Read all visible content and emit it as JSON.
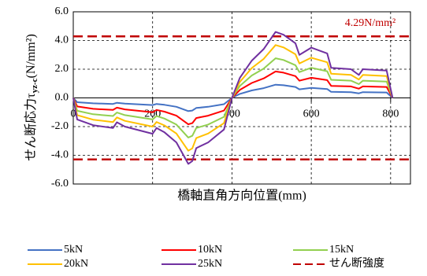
{
  "chart_data": {
    "type": "line",
    "xlabel": "橋軸直角方向位置(mm)",
    "ylabel": "せん断応力τ",
    "ylabel_sub": "yz-c",
    "ylabel_tail": "(N/mm²)",
    "annotation": "4.29N/mm²",
    "x": [
      0,
      10,
      50,
      100,
      110,
      130,
      200,
      210,
      230,
      260,
      290,
      300,
      310,
      340,
      380,
      400,
      420,
      450,
      480,
      510,
      530,
      560,
      570,
      600,
      640,
      650,
      700,
      720,
      730,
      790,
      805
    ],
    "series": [
      {
        "name": "5kN",
        "color": "#4472c4",
        "values": [
          0,
          -0.3,
          -0.38,
          -0.42,
          -0.34,
          -0.4,
          -0.5,
          -0.42,
          -0.48,
          -0.62,
          -0.92,
          -0.88,
          -0.7,
          -0.62,
          -0.44,
          0,
          0.28,
          0.52,
          0.68,
          0.92,
          0.88,
          0.76,
          0.6,
          0.7,
          0.62,
          0.42,
          0.4,
          0.32,
          0.4,
          0.38,
          0
        ]
      },
      {
        "name": "10kN",
        "color": "#ff0000",
        "values": [
          0,
          -0.6,
          -0.76,
          -0.84,
          -0.68,
          -0.8,
          -1.0,
          -0.84,
          -0.96,
          -1.24,
          -1.84,
          -1.76,
          -1.4,
          -1.24,
          -0.88,
          0,
          0.56,
          1.04,
          1.36,
          1.84,
          1.76,
          1.52,
          1.2,
          1.4,
          1.24,
          0.84,
          0.8,
          0.64,
          0.8,
          0.76,
          0
        ]
      },
      {
        "name": "15kN",
        "color": "#92d050",
        "values": [
          0,
          -0.9,
          -1.14,
          -1.26,
          -1.02,
          -1.2,
          -1.5,
          -1.26,
          -1.44,
          -1.86,
          -2.76,
          -2.64,
          -2.1,
          -1.86,
          -1.32,
          0,
          0.84,
          1.56,
          2.04,
          2.76,
          2.64,
          2.28,
          1.8,
          2.1,
          1.86,
          1.26,
          1.2,
          0.96,
          1.2,
          1.14,
          0
        ]
      },
      {
        "name": "20kN",
        "color": "#ffc000",
        "values": [
          0,
          -1.2,
          -1.52,
          -1.68,
          -1.36,
          -1.6,
          -2.0,
          -1.68,
          -1.92,
          -2.48,
          -3.68,
          -3.52,
          -2.8,
          -2.48,
          -1.76,
          0,
          1.12,
          2.08,
          2.72,
          3.68,
          3.52,
          3.04,
          2.4,
          2.8,
          2.48,
          1.68,
          1.6,
          1.28,
          1.6,
          1.52,
          0
        ]
      },
      {
        "name": "25kN",
        "color": "#7030a0",
        "values": [
          0,
          -1.5,
          -1.9,
          -2.1,
          -1.7,
          -2.0,
          -2.5,
          -2.1,
          -2.4,
          -3.1,
          -4.6,
          -4.4,
          -3.5,
          -3.1,
          -2.2,
          0,
          1.4,
          2.6,
          3.4,
          4.6,
          4.4,
          3.8,
          3.0,
          3.5,
          3.1,
          2.1,
          2.0,
          1.6,
          2.0,
          1.9,
          0
        ]
      }
    ],
    "limit": {
      "name": "せん断強度",
      "color": "#c00000",
      "values": [
        4.29,
        -4.29
      ]
    },
    "xlim": [
      0,
      850
    ],
    "ylim": [
      -6,
      6
    ],
    "xticks": [
      0,
      200,
      400,
      600,
      800
    ],
    "yticks": [
      {
        "value": 6,
        "label": "6.0"
      },
      {
        "value": 4,
        "label": "4.0"
      },
      {
        "value": 2,
        "label": "2.0"
      },
      {
        "value": 0,
        "label": "0.0"
      },
      {
        "value": -2,
        "label": "-2.0"
      },
      {
        "value": -4,
        "label": "-4.0"
      },
      {
        "value": -6,
        "label": "-6.0"
      }
    ],
    "grid": true,
    "legend": "bottom"
  }
}
